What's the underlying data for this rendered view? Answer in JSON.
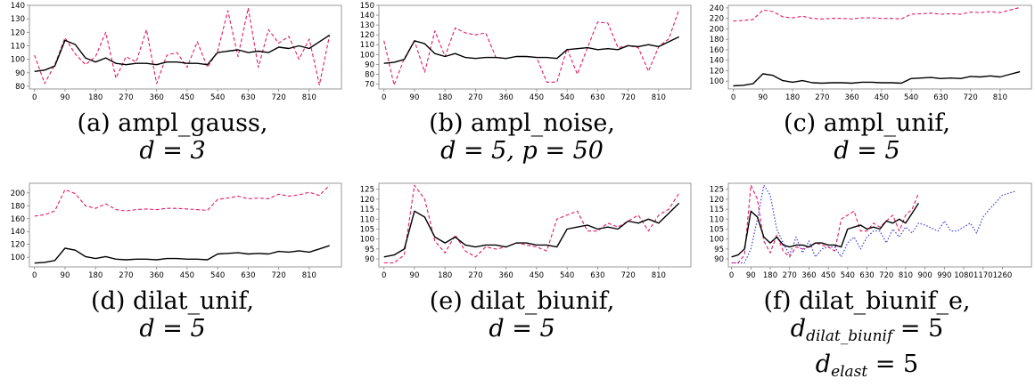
{
  "colors": {
    "reference": "#000000",
    "transformed": "#e6196b",
    "elastic": "#3d3ddb",
    "axis": "#808080"
  },
  "panels": [
    {
      "caption": {
        "line1": "(a) ampl_gauss,",
        "line2": "d = 3"
      }
    },
    {
      "caption": {
        "line1": "(b) ampl_noise,",
        "line2": "d = 5, p = 50"
      }
    },
    {
      "caption": {
        "line1": "(c) ampl_unif,",
        "line2": "d = 5"
      }
    },
    {
      "caption": {
        "line1": "(d) dilat_unif,",
        "line2": "d = 5"
      }
    },
    {
      "caption": {
        "line1": "(e) dilat_biunif,",
        "line2": "d = 5"
      }
    },
    {
      "caption": {
        "line1": "(f) dilat_biunif_e,",
        "line2_var": "d",
        "line2_sub": "dilat_biunif",
        "line2_rest": " = 5",
        "line3_var": "d",
        "line3_sub": "elast",
        "line3_rest": " = 5"
      }
    }
  ],
  "chart_data": [
    {
      "type": "line",
      "xlim": [
        -15,
        905
      ],
      "ylim": [
        78,
        140
      ],
      "xticks": [
        0,
        90,
        180,
        270,
        360,
        450,
        540,
        630,
        720,
        810
      ],
      "yticks": [
        80,
        90,
        100,
        110,
        120,
        130,
        140
      ],
      "grid": false,
      "series": [
        {
          "x": [
            0,
            30,
            60,
            90,
            120,
            150,
            180,
            210,
            240,
            270,
            300,
            330,
            360,
            390,
            420,
            450,
            480,
            510,
            540,
            570,
            600,
            630,
            660,
            690,
            720,
            750,
            780,
            810,
            840,
            870
          ],
          "values": [
            91,
            92,
            95,
            114,
            111,
            101,
            98,
            101,
            97,
            96,
            97,
            97,
            96,
            98,
            98,
            97,
            97,
            96,
            105,
            106,
            107,
            105,
            106,
            105,
            109,
            108,
            110,
            108,
            113,
            118
          ]
        },
        {
          "x": [
            0,
            30,
            60,
            90,
            120,
            150,
            180,
            210,
            240,
            270,
            300,
            330,
            360,
            390,
            420,
            450,
            480,
            510,
            540,
            570,
            600,
            630,
            660,
            690,
            720,
            750,
            780,
            810,
            840,
            870
          ],
          "values": [
            103,
            82,
            96,
            116,
            104,
            96,
            102,
            120,
            86,
            102,
            98,
            122,
            82,
            103,
            105,
            94,
            113,
            94,
            106,
            136,
            102,
            138,
            94,
            122,
            112,
            117,
            100,
            115,
            81,
            118
          ]
        }
      ]
    },
    {
      "type": "line",
      "xlim": [
        -15,
        905
      ],
      "ylim": [
        65,
        150
      ],
      "xticks": [
        0,
        90,
        180,
        270,
        360,
        450,
        540,
        630,
        720,
        810
      ],
      "yticks": [
        70,
        80,
        90,
        100,
        110,
        120,
        130,
        140,
        150
      ],
      "grid": false,
      "series": [
        {
          "x": [
            0,
            30,
            60,
            90,
            120,
            150,
            180,
            210,
            240,
            270,
            300,
            330,
            360,
            390,
            420,
            450,
            480,
            510,
            540,
            570,
            600,
            630,
            660,
            690,
            720,
            750,
            780,
            810,
            840,
            870
          ],
          "values": [
            91,
            92,
            95,
            114,
            111,
            101,
            98,
            101,
            97,
            96,
            97,
            97,
            96,
            98,
            98,
            97,
            97,
            96,
            105,
            106,
            107,
            105,
            106,
            105,
            109,
            108,
            110,
            108,
            113,
            118
          ]
        },
        {
          "x": [
            0,
            30,
            60,
            90,
            120,
            150,
            180,
            210,
            240,
            270,
            300,
            330,
            360,
            390,
            420,
            450,
            480,
            510,
            540,
            570,
            600,
            630,
            660,
            690,
            720,
            750,
            780,
            810,
            840,
            870
          ],
          "values": [
            114,
            69,
            96,
            114,
            82,
            124,
            98,
            127,
            122,
            120,
            122,
            97,
            96,
            98,
            98,
            97,
            72,
            72,
            106,
            80,
            107,
            133,
            132,
            107,
            109,
            107,
            83,
            108,
            116,
            146
          ]
        }
      ]
    },
    {
      "type": "line",
      "xlim": [
        -15,
        905
      ],
      "ylim": [
        85,
        245
      ],
      "xticks": [
        0,
        90,
        180,
        270,
        360,
        450,
        540,
        630,
        720,
        810
      ],
      "yticks": [
        100,
        120,
        140,
        160,
        180,
        200,
        220,
        240
      ],
      "grid": false,
      "series": [
        {
          "x": [
            0,
            30,
            60,
            90,
            120,
            150,
            180,
            210,
            240,
            270,
            300,
            330,
            360,
            390,
            420,
            450,
            480,
            510,
            540,
            570,
            600,
            630,
            660,
            690,
            720,
            750,
            780,
            810,
            840,
            870
          ],
          "values": [
            91,
            92,
            95,
            114,
            111,
            101,
            98,
            101,
            97,
            96,
            97,
            97,
            96,
            98,
            98,
            97,
            97,
            96,
            105,
            106,
            107,
            105,
            106,
            105,
            109,
            108,
            110,
            108,
            113,
            118
          ]
        },
        {
          "x": [
            0,
            30,
            60,
            90,
            120,
            150,
            180,
            210,
            240,
            270,
            300,
            330,
            360,
            390,
            420,
            450,
            480,
            510,
            540,
            570,
            600,
            630,
            660,
            690,
            720,
            750,
            780,
            810,
            840,
            870
          ],
          "values": [
            215,
            216,
            218,
            236,
            233,
            223,
            221,
            224,
            220,
            219,
            220,
            220,
            219,
            221,
            221,
            220,
            220,
            219,
            228,
            229,
            230,
            228,
            229,
            228,
            232,
            231,
            233,
            231,
            236,
            241
          ]
        }
      ]
    },
    {
      "type": "line",
      "xlim": [
        -15,
        905
      ],
      "ylim": [
        85,
        215
      ],
      "xticks": [
        0,
        90,
        180,
        270,
        360,
        450,
        540,
        630,
        720,
        810
      ],
      "yticks": [
        100,
        120,
        140,
        160,
        180,
        200
      ],
      "grid": false,
      "series": [
        {
          "x": [
            0,
            30,
            60,
            90,
            120,
            150,
            180,
            210,
            240,
            270,
            300,
            330,
            360,
            390,
            420,
            450,
            480,
            510,
            540,
            570,
            600,
            630,
            660,
            690,
            720,
            750,
            780,
            810,
            840,
            870
          ],
          "values": [
            91,
            92,
            95,
            114,
            111,
            101,
            98,
            101,
            97,
            96,
            97,
            97,
            96,
            98,
            98,
            97,
            97,
            96,
            105,
            106,
            107,
            105,
            106,
            105,
            109,
            108,
            110,
            108,
            113,
            118
          ]
        },
        {
          "x": [
            0,
            30,
            60,
            90,
            120,
            150,
            180,
            210,
            240,
            270,
            300,
            330,
            360,
            390,
            420,
            450,
            480,
            510,
            540,
            570,
            600,
            630,
            660,
            690,
            720,
            750,
            780,
            810,
            840,
            870
          ],
          "values": [
            164,
            166,
            172,
            205,
            199,
            180,
            176,
            183,
            174,
            172,
            174,
            175,
            174,
            176,
            176,
            175,
            174,
            173,
            190,
            192,
            195,
            191,
            192,
            191,
            198,
            195,
            197,
            201,
            196,
            212
          ]
        }
      ]
    },
    {
      "type": "line",
      "xlim": [
        -15,
        905
      ],
      "ylim": [
        86,
        128
      ],
      "xticks": [
        0,
        90,
        180,
        270,
        360,
        450,
        540,
        630,
        720,
        810
      ],
      "yticks": [
        90,
        95,
        100,
        105,
        110,
        115,
        120,
        125
      ],
      "grid": false,
      "series": [
        {
          "x": [
            0,
            30,
            60,
            90,
            120,
            150,
            180,
            210,
            240,
            270,
            300,
            330,
            360,
            390,
            420,
            450,
            480,
            510,
            540,
            570,
            600,
            630,
            660,
            690,
            720,
            750,
            780,
            810,
            840,
            870
          ],
          "values": [
            91,
            92,
            95,
            114,
            111,
            101,
            98,
            101,
            97,
            96,
            97,
            97,
            96,
            98,
            98,
            97,
            97,
            96,
            105,
            106,
            107,
            105,
            106,
            105,
            109,
            108,
            110,
            108,
            113,
            118
          ]
        },
        {
          "x": [
            0,
            30,
            60,
            90,
            120,
            150,
            180,
            210,
            240,
            270,
            300,
            330,
            360,
            390,
            420,
            450,
            480,
            510,
            540,
            570,
            600,
            630,
            660,
            690,
            720,
            750,
            780,
            810,
            840,
            870
          ],
          "values": [
            88,
            88,
            92,
            127,
            120,
            99,
            93,
            102,
            94,
            91,
            96,
            95,
            96,
            98,
            97,
            96,
            94,
            110,
            112,
            114,
            104,
            104,
            108,
            106,
            109,
            112,
            104,
            112,
            115,
            123
          ]
        }
      ]
    },
    {
      "type": "line",
      "xlim": [
        -15,
        1395
      ],
      "ylim": [
        86,
        128
      ],
      "xticks": [
        0,
        90,
        180,
        270,
        360,
        450,
        540,
        630,
        720,
        810,
        900,
        990,
        1080,
        1170,
        1260
      ],
      "yticks": [
        90,
        95,
        100,
        105,
        110,
        115,
        120,
        125
      ],
      "grid": false,
      "series": [
        {
          "x": [
            0,
            30,
            60,
            90,
            120,
            150,
            180,
            210,
            240,
            270,
            300,
            330,
            360,
            390,
            420,
            450,
            480,
            510,
            540,
            570,
            600,
            630,
            660,
            690,
            720,
            750,
            780,
            810,
            840,
            870
          ],
          "values": [
            91,
            92,
            95,
            114,
            111,
            101,
            98,
            101,
            97,
            96,
            97,
            97,
            96,
            98,
            98,
            97,
            97,
            96,
            105,
            106,
            107,
            105,
            106,
            105,
            109,
            108,
            110,
            108,
            113,
            118
          ]
        },
        {
          "x": [
            0,
            30,
            60,
            90,
            120,
            150,
            180,
            210,
            240,
            270,
            300,
            330,
            360,
            390,
            420,
            450,
            480,
            510,
            540,
            570,
            600,
            630,
            660,
            690,
            720,
            750,
            780,
            810,
            840,
            870
          ],
          "values": [
            88,
            88,
            92,
            127,
            120,
            99,
            93,
            102,
            94,
            91,
            96,
            95,
            96,
            98,
            97,
            96,
            94,
            110,
            112,
            114,
            104,
            104,
            108,
            106,
            109,
            112,
            104,
            112,
            115,
            123
          ]
        },
        {
          "x": [
            0,
            60,
            90,
            120,
            150,
            180,
            210,
            240,
            270,
            300,
            330,
            360,
            390,
            420,
            450,
            480,
            510,
            540,
            570,
            600,
            630,
            660,
            690,
            720,
            750,
            780,
            810,
            840,
            870,
            900,
            960,
            990,
            1020,
            1050,
            1080,
            1110,
            1140,
            1170,
            1200,
            1260,
            1320
          ],
          "values": [
            88,
            88,
            95,
            110,
            127,
            122,
            105,
            98,
            92,
            101,
            93,
            99,
            91,
            95,
            96,
            96,
            91,
            98,
            101,
            95,
            101,
            104,
            104,
            98,
            105,
            101,
            106,
            103,
            108,
            107,
            104,
            109,
            104,
            104,
            106,
            108,
            103,
            111,
            115,
            122,
            124
          ]
        }
      ]
    }
  ]
}
